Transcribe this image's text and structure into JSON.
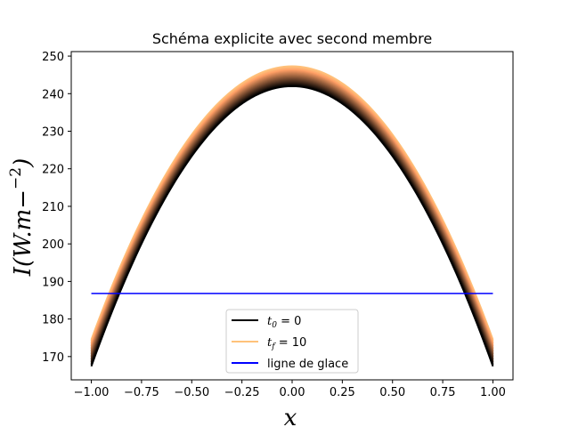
{
  "chart_data": {
    "type": "line",
    "title": "Schéma explicite avec second membre",
    "xlabel": "x",
    "ylabel": "I(W.m^-2)",
    "xlim": [
      -1.1,
      1.1
    ],
    "ylim": [
      163.8,
      251.2
    ],
    "xticks": [
      -1.0,
      -0.75,
      -0.5,
      -0.25,
      0.0,
      0.25,
      0.5,
      0.75,
      1.0
    ],
    "xtick_labels": [
      "−1.00",
      "−0.75",
      "−0.50",
      "−0.25",
      "0.00",
      "0.25",
      "0.50",
      "0.75",
      "1.00"
    ],
    "yticks": [
      170,
      180,
      190,
      200,
      210,
      220,
      230,
      240,
      250
    ],
    "ytick_labels": [
      "170",
      "180",
      "190",
      "200",
      "210",
      "220",
      "230",
      "240",
      "250"
    ],
    "grid": false,
    "legend_position": "lower center",
    "series": [
      {
        "name": "t0 = 0",
        "color": "#000000",
        "x": [
          -1.0,
          0.0,
          1.0
        ],
        "y": [
          167.4,
          242.0,
          167.4
        ],
        "shape": "parabola"
      },
      {
        "name": "tf = 10",
        "color": "#ffc27a",
        "x": [
          -1.0,
          0.0,
          1.0
        ],
        "y": [
          174.5,
          247.3,
          174.5
        ],
        "shape": "parabola"
      },
      {
        "name": "ligne de glace",
        "color": "#0000ff",
        "x": [
          -1.0,
          1.0
        ],
        "y": [
          186.8,
          186.8
        ]
      }
    ],
    "intermediate_curves": {
      "count": 20,
      "colormap": "copper",
      "from_series": 0,
      "to_series": 1
    },
    "legend": [
      {
        "label_main": "t",
        "label_sub": "0",
        "label_rest": " = 0",
        "color": "#000000"
      },
      {
        "label_main": "t",
        "label_sub": "f",
        "label_rest": " = 10",
        "color": "#ffc27a"
      },
      {
        "label_main": "ligne de glace",
        "label_sub": "",
        "label_rest": "",
        "color": "#0000ff"
      }
    ]
  }
}
